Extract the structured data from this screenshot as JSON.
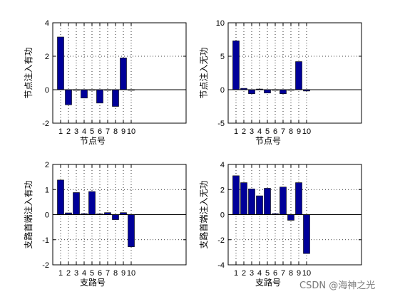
{
  "watermark": "CSDN @海神之光",
  "colors": {
    "bar": "#000099",
    "axis": "#000000",
    "grid": "#000000",
    "background": "#ffffff"
  },
  "chart_data": [
    {
      "type": "bar",
      "title": "",
      "xlabel": "节点号",
      "ylabel": "节点注入有功",
      "categories": [
        "1",
        "2",
        "3",
        "4",
        "5",
        "6",
        "7",
        "8",
        "9",
        "10"
      ],
      "values": [
        3.15,
        -0.9,
        0.0,
        -0.5,
        0.0,
        -0.8,
        0.0,
        -1.0,
        1.9,
        0.0
      ],
      "ylim": [
        -2,
        4
      ],
      "xlim": [
        0,
        17
      ],
      "yticks": [
        "-2",
        "0",
        "2",
        "4"
      ],
      "grid": true
    },
    {
      "type": "bar",
      "title": "",
      "xlabel": "节点号",
      "ylabel": "节点注入无功",
      "categories": [
        "1",
        "2",
        "3",
        "4",
        "5",
        "6",
        "7",
        "8",
        "9",
        "10"
      ],
      "values": [
        7.3,
        0.2,
        -0.6,
        0.1,
        -0.5,
        0.0,
        -0.6,
        0.0,
        4.2,
        -0.2
      ],
      "ylim": [
        -5,
        10
      ],
      "xlim": [
        0,
        17
      ],
      "yticks": [
        "-5",
        "0",
        "5",
        "10"
      ],
      "grid": true
    },
    {
      "type": "bar",
      "title": "",
      "xlabel": "支路号",
      "ylabel": "支路首端注入有功",
      "categories": [
        "1",
        "2",
        "3",
        "4",
        "5",
        "6",
        "7",
        "8",
        "9",
        "10"
      ],
      "values": [
        1.38,
        0.07,
        0.88,
        0.04,
        0.92,
        0.03,
        0.08,
        -0.2,
        0.08,
        -1.28
      ],
      "ylim": [
        -2,
        2
      ],
      "xlim": [
        0,
        17
      ],
      "yticks": [
        "-2",
        "-1",
        "0",
        "1",
        "2"
      ],
      "grid": true
    },
    {
      "type": "bar",
      "title": "",
      "xlabel": "支路号",
      "ylabel": "支路首端注入无功",
      "categories": [
        "1",
        "2",
        "3",
        "4",
        "5",
        "6",
        "7",
        "8",
        "9",
        "10"
      ],
      "values": [
        3.1,
        2.55,
        2.05,
        1.5,
        2.1,
        0.08,
        2.2,
        -0.45,
        2.55,
        -3.1
      ],
      "ylim": [
        -4,
        4
      ],
      "xlim": [
        0,
        17
      ],
      "yticks": [
        "-4",
        "-2",
        "0",
        "2",
        "4"
      ],
      "grid": true
    }
  ]
}
